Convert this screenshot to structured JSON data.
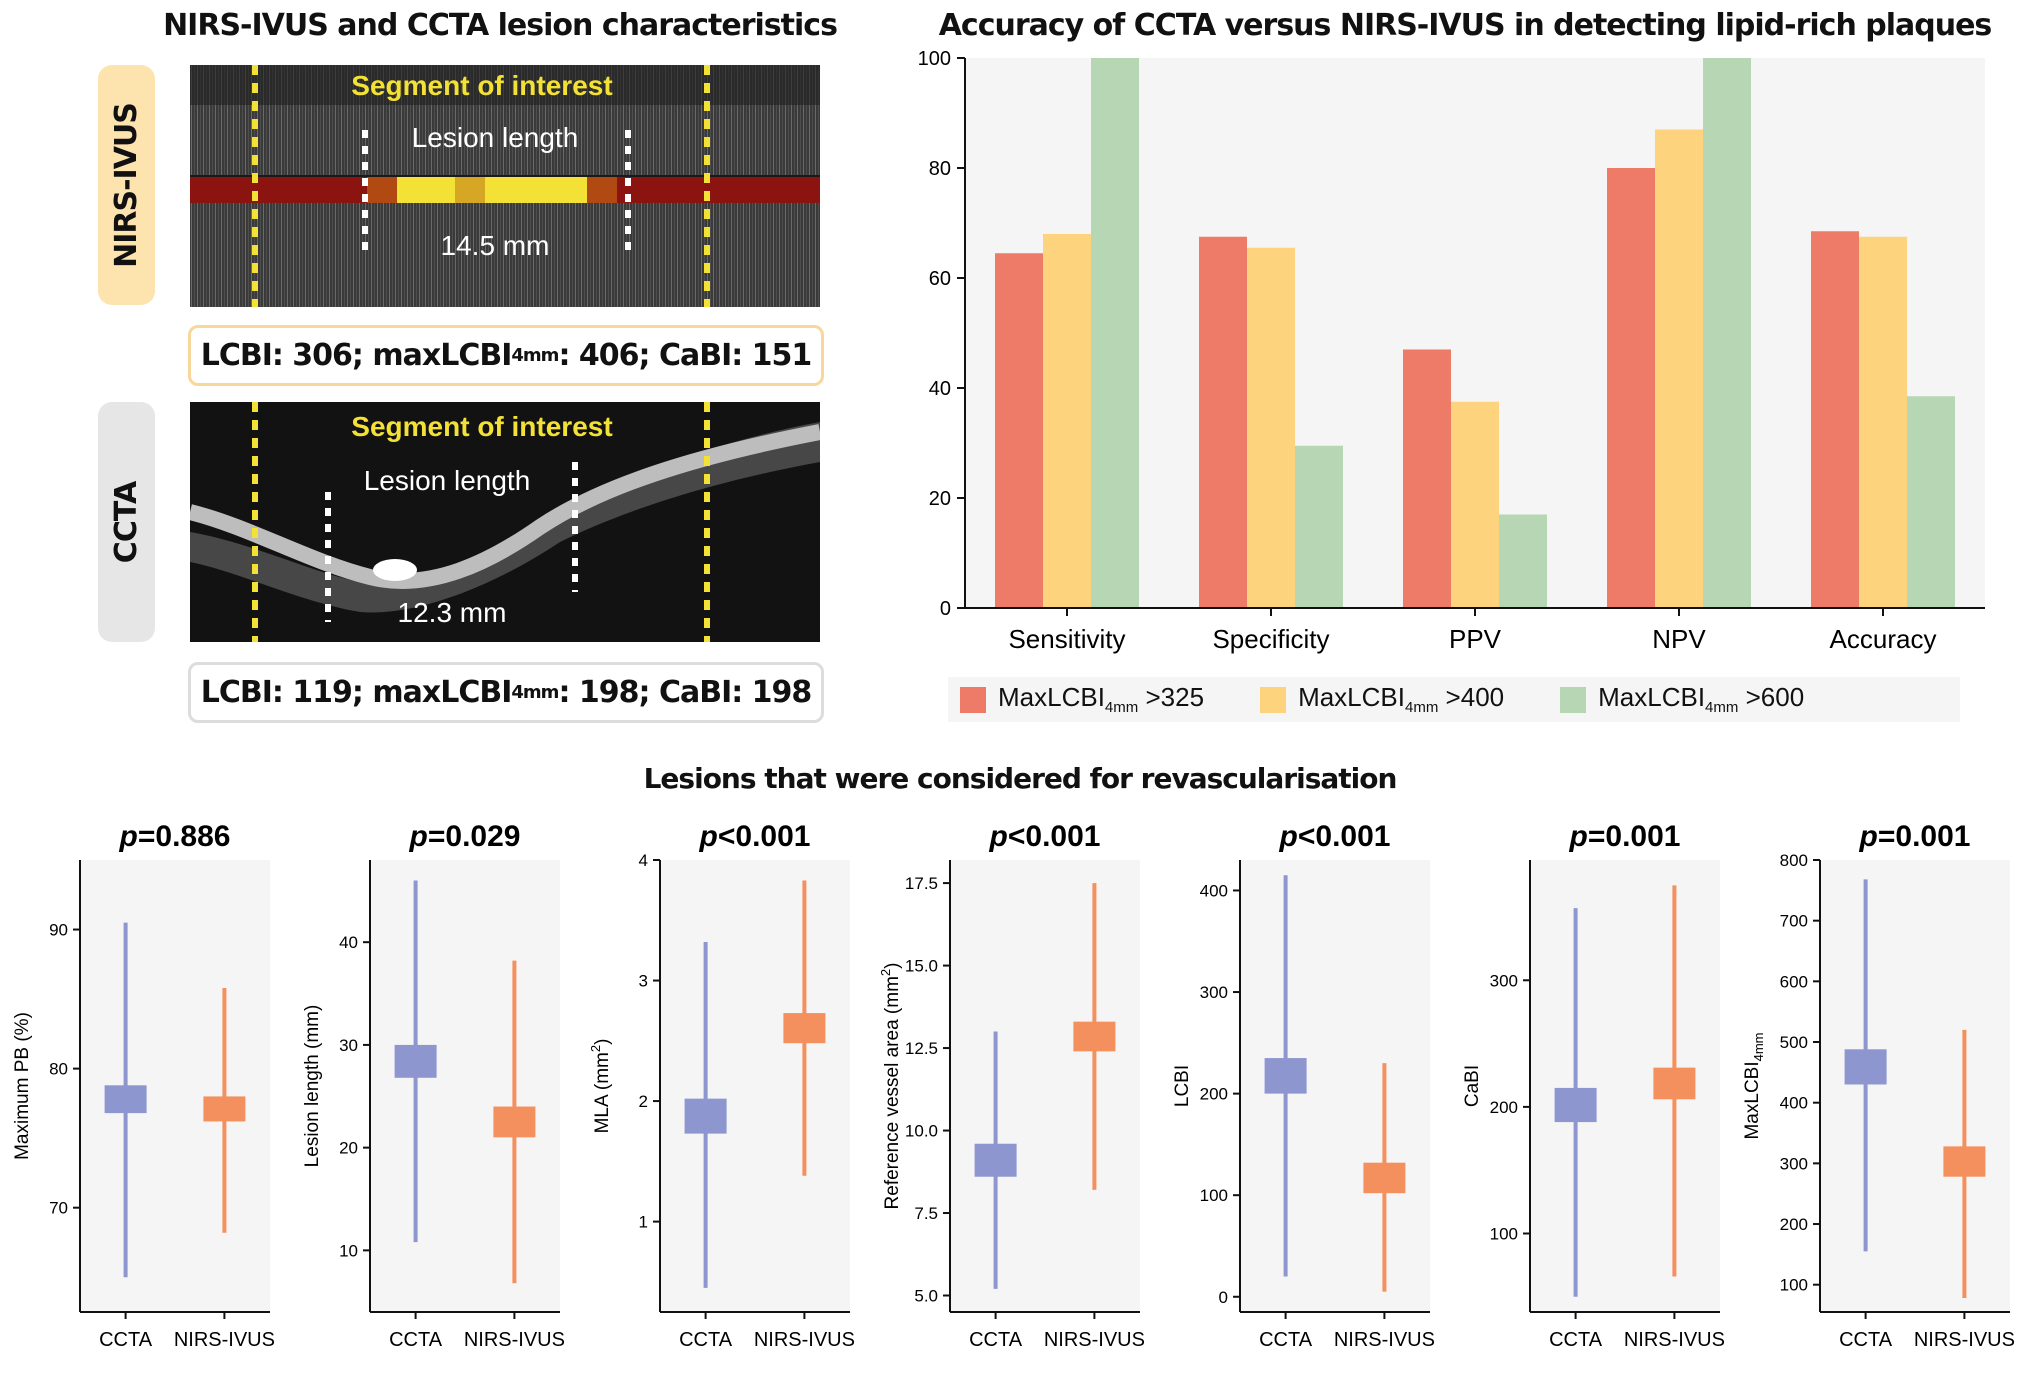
{
  "left": {
    "title": "NIRS-IVUS and CCTA lesion characteristics",
    "nirs": {
      "tab_label": "NIRS-IVUS",
      "segment_label": "Segment of interest",
      "lesion_label": "Lesion length",
      "length_label": "14.5 mm",
      "stats": {
        "lcbi": "LCBI: 306; maxLCBI",
        "sub": "4mm",
        "rest": ": 406; CaBI: 151"
      }
    },
    "ccta": {
      "tab_label": "CCTA",
      "segment_label": "Segment of interest",
      "lesion_label": "Lesion length",
      "length_label": "12.3 mm",
      "stats": {
        "lcbi": "LCBI: 119; maxLCBI",
        "sub": "4mm",
        "rest": ": 198; CaBI: 198"
      }
    },
    "colors": {
      "nirs_tab": "#fde3ad",
      "ccta_tab": "#e6e6e6",
      "nirs_border": "#f7d79a",
      "ccta_border": "#dcdcdc"
    }
  },
  "chart_data": [
    {
      "type": "bar",
      "title": "Accuracy of CCTA versus NIRS-IVUS in detecting lipid-rich  plaques",
      "categories": [
        "Sensitivity",
        "Specificity",
        "PPV",
        "NPV",
        "Accuracy"
      ],
      "ylim": [
        0,
        100
      ],
      "yticks": [
        "0",
        "20",
        "40",
        "60",
        "80",
        "100"
      ],
      "legend_position": "bottom",
      "series": [
        {
          "name": "MaxLCBI",
          "sub": "4mm",
          "suffix": " >325",
          "color": "#ee7a68",
          "values": [
            64.5,
            67.5,
            47,
            80,
            68.5
          ]
        },
        {
          "name": "MaxLCBI",
          "sub": "4mm",
          "suffix": " >400",
          "color": "#fdd37e",
          "values": [
            68,
            65.5,
            37.5,
            87,
            67.5
          ]
        },
        {
          "name": "MaxLCBI",
          "sub": "4mm",
          "suffix": " >600",
          "color": "#b7d6b3",
          "values": [
            100,
            29.5,
            17,
            100,
            38.5
          ]
        }
      ]
    },
    {
      "type": "box",
      "title": "Lesions that were considered for revascularisation",
      "categories": [
        "CCTA",
        "NIRS-IVUS"
      ],
      "colors": [
        "#8d96cf",
        "#f3905e"
      ],
      "panels": [
        {
          "p": "p",
          "pval": "=0.886",
          "ylabel": "Maximum PB (%)",
          "ylabel_sub": "",
          "ymin": 62.5,
          "ymax": 95,
          "yticks": [
            70,
            80,
            90
          ],
          "groups": [
            {
              "low": 65,
              "q1": 76.8,
              "q3": 78.8,
              "high": 90.5
            },
            {
              "low": 68.2,
              "q1": 76.2,
              "q3": 78,
              "high": 85.8
            }
          ]
        },
        {
          "p": "p",
          "pval": "=0.029",
          "ylabel": "Lesion length (mm)",
          "ylabel_sub": "",
          "ymin": 4,
          "ymax": 48,
          "yticks": [
            10,
            20,
            30,
            40
          ],
          "groups": [
            {
              "low": 10.8,
              "q1": 26.8,
              "q3": 30,
              "high": 46
            },
            {
              "low": 6.8,
              "q1": 21,
              "q3": 24,
              "high": 38.2
            }
          ]
        },
        {
          "p": "p",
          "pval": "<0.001",
          "ylabel": "MLA (mm",
          "ylabel_sub": "2)",
          "ymin": 0.25,
          "ymax": 4,
          "yticks": [
            1,
            2,
            3,
            4
          ],
          "groups": [
            {
              "low": 0.45,
              "q1": 1.73,
              "q3": 2.02,
              "high": 3.32
            },
            {
              "low": 1.38,
              "q1": 2.48,
              "q3": 2.73,
              "high": 3.83
            }
          ]
        },
        {
          "p": "p",
          "pval": "<0.001",
          "ylabel": "Reference vessel area (mm",
          "ylabel_sub": "2)",
          "ymin": 4.5,
          "ymax": 18.2,
          "yticks": [
            "5.0",
            "7.5",
            "10.0",
            "12.5",
            "15.0",
            "17.5"
          ],
          "groups": [
            {
              "low": 5.2,
              "q1": 8.6,
              "q3": 9.6,
              "high": 13.0
            },
            {
              "low": 8.2,
              "q1": 12.4,
              "q3": 13.3,
              "high": 17.5
            }
          ]
        },
        {
          "p": "p",
          "pval": "<0.001",
          "ylabel": "LCBI",
          "ylabel_sub": "",
          "ymin": -15,
          "ymax": 430,
          "yticks": [
            0,
            100,
            200,
            300,
            400
          ],
          "groups": [
            {
              "low": 20,
              "q1": 200,
              "q3": 235,
              "high": 415
            },
            {
              "low": 5,
              "q1": 102,
              "q3": 132,
              "high": 230
            }
          ]
        },
        {
          "p": "p",
          "pval": "=0.001",
          "ylabel": "CaBI",
          "ylabel_sub": "",
          "ymin": 38,
          "ymax": 395,
          "yticks": [
            100,
            200,
            300
          ],
          "groups": [
            {
              "low": 50,
              "q1": 188,
              "q3": 215,
              "high": 357
            },
            {
              "low": 66,
              "q1": 206,
              "q3": 231,
              "high": 375
            }
          ]
        },
        {
          "p": "p",
          "pval": "=0.001",
          "ylabel": "MaxLCBI",
          "ylabel_sub": "4mm",
          "ymin": 55,
          "ymax": 800,
          "yticks": [
            100,
            200,
            300,
            400,
            500,
            600,
            700,
            800
          ],
          "groups": [
            {
              "low": 155,
              "q1": 430,
              "q3": 488,
              "high": 768
            },
            {
              "low": 78,
              "q1": 278,
              "q3": 328,
              "high": 520
            }
          ]
        }
      ]
    }
  ]
}
